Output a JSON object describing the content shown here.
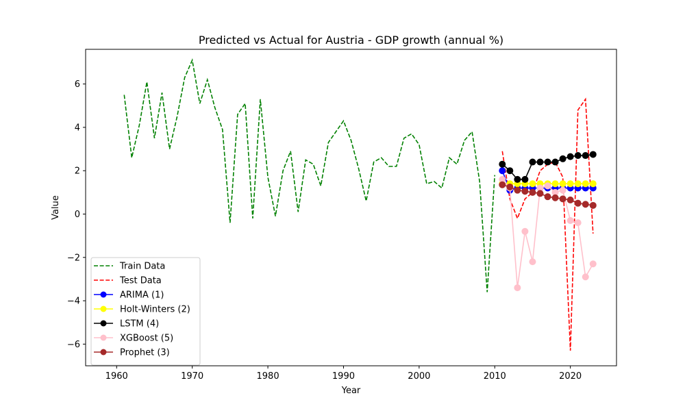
{
  "chart_data": {
    "type": "line",
    "title": "Predicted vs Actual for Austria - GDP growth (annual %)",
    "xlabel": "Year",
    "ylabel": "Value",
    "xlim": [
      1955.9,
      2026.1
    ],
    "ylim": [
      -7.0,
      7.6
    ],
    "xticks": [
      1960,
      1970,
      1980,
      1990,
      2000,
      2010,
      2020
    ],
    "yticks": [
      -6,
      -4,
      -2,
      0,
      2,
      4,
      6
    ],
    "grid": false,
    "legend_position": "lower-left",
    "series": [
      {
        "name": "Train Data",
        "color": "#008000",
        "style": "dashed",
        "marker": false,
        "x": [
          1961,
          1962,
          1963,
          1964,
          1965,
          1966,
          1967,
          1968,
          1969,
          1970,
          1971,
          1972,
          1973,
          1974,
          1975,
          1976,
          1977,
          1978,
          1979,
          1980,
          1981,
          1982,
          1983,
          1984,
          1985,
          1986,
          1987,
          1988,
          1989,
          1990,
          1991,
          1992,
          1993,
          1994,
          1995,
          1996,
          1997,
          1998,
          1999,
          2000,
          2001,
          2002,
          2003,
          2004,
          2005,
          2006,
          2007,
          2008,
          2009,
          2010
        ],
        "y": [
          5.5,
          2.6,
          4.1,
          6.1,
          3.5,
          5.6,
          3.0,
          4.5,
          6.3,
          7.1,
          5.1,
          6.2,
          4.9,
          3.9,
          -0.4,
          4.6,
          5.1,
          -0.2,
          5.3,
          1.7,
          -0.1,
          2.0,
          2.9,
          0.1,
          2.5,
          2.3,
          1.3,
          3.3,
          3.8,
          4.3,
          3.4,
          2.1,
          0.6,
          2.4,
          2.6,
          2.2,
          2.2,
          3.5,
          3.7,
          3.2,
          1.4,
          1.5,
          1.2,
          2.6,
          2.3,
          3.4,
          3.8,
          1.5,
          -3.6,
          1.8
        ]
      },
      {
        "name": "Test Data",
        "color": "#ff0000",
        "style": "dashed",
        "marker": false,
        "x": [
          2011,
          2012,
          2013,
          2014,
          2015,
          2016,
          2017,
          2018,
          2019,
          2020,
          2021,
          2022,
          2023
        ],
        "y": [
          2.9,
          0.7,
          -0.2,
          0.7,
          1.0,
          2.0,
          2.3,
          2.4,
          1.7,
          -6.3,
          4.8,
          5.3,
          -0.9
        ]
      },
      {
        "name": "ARIMA (1)",
        "color": "#0000ff",
        "style": "solid",
        "marker": true,
        "x": [
          2011,
          2012,
          2013,
          2014,
          2015,
          2016,
          2017,
          2018,
          2019,
          2020,
          2021,
          2022,
          2023
        ],
        "y": [
          2.0,
          1.1,
          1.2,
          1.2,
          1.2,
          1.2,
          1.2,
          1.2,
          1.2,
          1.2,
          1.2,
          1.2,
          1.2
        ]
      },
      {
        "name": "Holt-Winters (2)",
        "color": "#ffff00",
        "style": "solid",
        "marker": true,
        "x": [
          2011,
          2012,
          2013,
          2014,
          2015,
          2016,
          2017,
          2018,
          2019,
          2020,
          2021,
          2022,
          2023
        ],
        "y": [
          1.4,
          1.4,
          1.4,
          1.4,
          1.4,
          1.4,
          1.4,
          1.4,
          1.4,
          1.4,
          1.4,
          1.4,
          1.4
        ]
      },
      {
        "name": "LSTM (4)",
        "color": "#000000",
        "style": "solid",
        "marker": true,
        "x": [
          2011,
          2012,
          2013,
          2014,
          2015,
          2016,
          2017,
          2018,
          2019,
          2020,
          2021,
          2022,
          2023
        ],
        "y": [
          2.3,
          2.0,
          1.6,
          1.6,
          2.4,
          2.4,
          2.4,
          2.4,
          2.55,
          2.65,
          2.7,
          2.7,
          2.75
        ]
      },
      {
        "name": "XGBoost (5)",
        "color": "#ffc0cb",
        "style": "solid",
        "marker": true,
        "x": [
          2011,
          2012,
          2013,
          2014,
          2015,
          2016,
          2017,
          2018,
          2019,
          2020,
          2021,
          2022,
          2023
        ],
        "y": [
          1.6,
          1.2,
          -3.4,
          -0.8,
          -2.2,
          1.2,
          1.3,
          1.0,
          1.1,
          -0.3,
          -0.4,
          -2.9,
          -2.3
        ]
      },
      {
        "name": "Prophet (3)",
        "color": "#a52a2a",
        "style": "solid",
        "marker": true,
        "x": [
          2011,
          2012,
          2013,
          2014,
          2015,
          2016,
          2017,
          2018,
          2019,
          2020,
          2021,
          2022,
          2023
        ],
        "y": [
          1.35,
          1.25,
          1.1,
          1.05,
          1.0,
          0.95,
          0.8,
          0.75,
          0.7,
          0.65,
          0.5,
          0.45,
          0.4
        ]
      }
    ]
  }
}
